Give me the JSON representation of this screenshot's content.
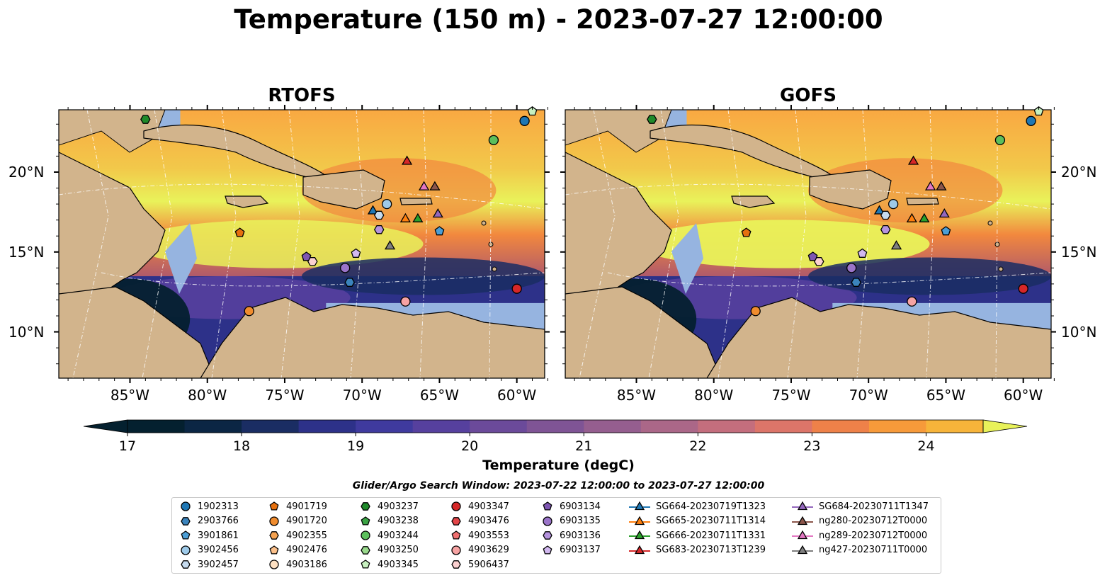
{
  "title": "Temperature (150 m) - 2023-07-27 12:00:00",
  "panels": [
    {
      "title": "RTOFS"
    },
    {
      "title": "GOFS"
    }
  ],
  "lon_ticks": [
    "85°W",
    "80°W",
    "75°W",
    "70°W",
    "65°W",
    "60°W"
  ],
  "lat_ticks": [
    "20°N",
    "15°N",
    "10°N"
  ],
  "colorbar": {
    "label": "Temperature (degC)",
    "tick_labels": [
      "17",
      "18",
      "19",
      "20",
      "21",
      "22",
      "23",
      "24"
    ],
    "min": 17,
    "max": 24.5,
    "step": 0.5
  },
  "search_window": "Glider/Argo Search Window: 2023-07-22 12:00:00 to 2023-07-27 12:00:00",
  "legend": [
    {
      "label": "1902313",
      "marker": "circle",
      "color": "#1f77b4"
    },
    {
      "label": "2903766",
      "marker": "hexagon",
      "color": "#3b84bd"
    },
    {
      "label": "3901861",
      "marker": "pentagon",
      "color": "#4c9ed5"
    },
    {
      "label": "3902456",
      "marker": "circle",
      "color": "#9ecae9"
    },
    {
      "label": "3902457",
      "marker": "hexagon",
      "color": "#c6dbef"
    },
    {
      "label": "4901719",
      "marker": "pentagon",
      "color": "#e6700e"
    },
    {
      "label": "4901720",
      "marker": "circle",
      "color": "#f08c2e"
    },
    {
      "label": "4902355",
      "marker": "hexagon",
      "color": "#f5a250"
    },
    {
      "label": "4902476",
      "marker": "pentagon",
      "color": "#fbc08a"
    },
    {
      "label": "4903186",
      "marker": "circle",
      "color": "#fde0c2"
    },
    {
      "label": "4903237",
      "marker": "hexagon",
      "color": "#1f8a2a"
    },
    {
      "label": "4903238",
      "marker": "pentagon",
      "color": "#3aa344"
    },
    {
      "label": "4903244",
      "marker": "circle",
      "color": "#5cbf5c"
    },
    {
      "label": "4903250",
      "marker": "hexagon",
      "color": "#99d98c"
    },
    {
      "label": "4903345",
      "marker": "pentagon",
      "color": "#c7f0bf"
    },
    {
      "label": "4903347",
      "marker": "circle",
      "color": "#d62728"
    },
    {
      "label": "4903476",
      "marker": "hexagon",
      "color": "#e34548"
    },
    {
      "label": "4903553",
      "marker": "pentagon",
      "color": "#f07070"
    },
    {
      "label": "4903629",
      "marker": "circle",
      "color": "#f7a3a3"
    },
    {
      "label": "5906437",
      "marker": "hexagon",
      "color": "#fbd0d0"
    },
    {
      "label": "6903134",
      "marker": "pentagon",
      "color": "#7e56b2"
    },
    {
      "label": "6903135",
      "marker": "circle",
      "color": "#9a74c9"
    },
    {
      "label": "6903136",
      "marker": "hexagon",
      "color": "#b593de"
    },
    {
      "label": "6903137",
      "marker": "pentagon",
      "color": "#d2b8f0"
    },
    {
      "label": "SG664-20230719T1323",
      "marker": "triangle",
      "color": "#1f77b4",
      "line": true
    },
    {
      "label": "SG665-20230711T1314",
      "marker": "triangle",
      "color": "#ff7f0e",
      "line": true
    },
    {
      "label": "SG666-20230711T1331",
      "marker": "triangle",
      "color": "#2ca02c",
      "line": true
    },
    {
      "label": "SG683-20230713T1239",
      "marker": "triangle",
      "color": "#d62728",
      "line": true
    },
    {
      "label": "SG684-20230711T1347",
      "marker": "triangle",
      "color": "#9467bd",
      "line": true
    },
    {
      "label": "ng280-20230712T0000",
      "marker": "triangle",
      "color": "#8c564b",
      "line": true
    },
    {
      "label": "ng289-20230712T0000",
      "marker": "triangle",
      "color": "#e377c2",
      "line": true
    },
    {
      "label": "ng427-20230711T0000",
      "marker": "triangle",
      "color": "#7f7f7f",
      "line": true
    }
  ],
  "map_markers": [
    {
      "label": "1902313",
      "lon": -59.5,
      "lat": 23.2
    },
    {
      "label": "4903237",
      "lon": -84.0,
      "lat": 23.3
    },
    {
      "label": "4903345",
      "lon": -59.0,
      "lat": 23.8
    },
    {
      "label": "4903244",
      "lon": -61.5,
      "lat": 22.0
    },
    {
      "label": "SG683-20230713T1239",
      "lon": -67.1,
      "lat": 20.7
    },
    {
      "label": "ng289-20230712T0000",
      "lon": -66.0,
      "lat": 19.1
    },
    {
      "label": "ng280-20230712T0000",
      "lon": -65.3,
      "lat": 19.1
    },
    {
      "label": "3902456",
      "lon": -68.4,
      "lat": 18.0
    },
    {
      "label": "SG664-20230719T1323",
      "lon": -69.3,
      "lat": 17.6
    },
    {
      "label": "3902457",
      "lon": -68.9,
      "lat": 17.3
    },
    {
      "label": "SG684-20230711T1347",
      "lon": -65.1,
      "lat": 17.4
    },
    {
      "label": "SG665-20230711T1314",
      "lon": -67.2,
      "lat": 17.1
    },
    {
      "label": "SG666-20230711T1331",
      "lon": -66.4,
      "lat": 17.1
    },
    {
      "label": "6903136",
      "lon": -68.9,
      "lat": 16.4
    },
    {
      "label": "3901861",
      "lon": -65.0,
      "lat": 16.3
    },
    {
      "label": "4901719",
      "lon": -77.9,
      "lat": 16.2
    },
    {
      "label": "ng427-20230711T0000",
      "lon": -68.2,
      "lat": 15.4
    },
    {
      "label": "6903137",
      "lon": -70.4,
      "lat": 14.9
    },
    {
      "label": "6903134",
      "lon": -73.6,
      "lat": 14.7
    },
    {
      "label": "5906437",
      "lon": -73.2,
      "lat": 14.4
    },
    {
      "label": "6903135",
      "lon": -71.1,
      "lat": 14.0
    },
    {
      "label": "2903766",
      "lon": -70.8,
      "lat": 13.1
    },
    {
      "label": "4903347",
      "lon": -60.0,
      "lat": 12.7
    },
    {
      "label": "4903629",
      "lon": -67.2,
      "lat": 11.9
    },
    {
      "label": "4901720",
      "lon": -77.3,
      "lat": 11.3
    }
  ]
}
